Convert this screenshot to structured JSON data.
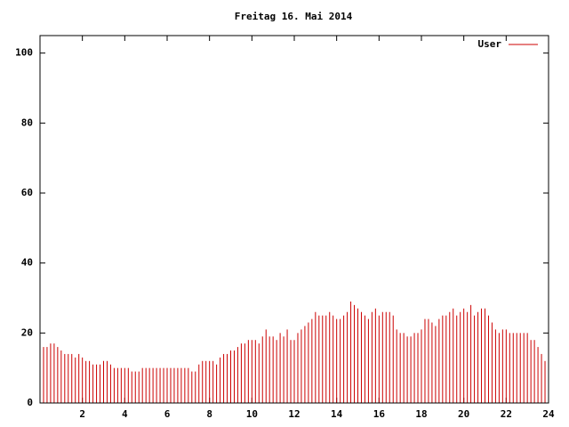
{
  "chart_data": {
    "type": "impulse",
    "title": "Freitag 16. Mai 2014",
    "series": [
      {
        "name": "User",
        "color": "#cc0000",
        "values": [
          15,
          16,
          16,
          17,
          17,
          16,
          15,
          14,
          14,
          14,
          13,
          14,
          13,
          12,
          12,
          11,
          11,
          11,
          12,
          12,
          11,
          10,
          10,
          10,
          10,
          10,
          9,
          9,
          9,
          10,
          10,
          10,
          10,
          10,
          10,
          10,
          10,
          10,
          10,
          10,
          10,
          10,
          10,
          9,
          9,
          11,
          12,
          12,
          12,
          12,
          11,
          13,
          14,
          14,
          15,
          15,
          16,
          17,
          17,
          18,
          18,
          18,
          17,
          19,
          21,
          19,
          19,
          18,
          20,
          19,
          21,
          18,
          18,
          20,
          21,
          22,
          23,
          24,
          26,
          25,
          25,
          25,
          26,
          25,
          24,
          24,
          25,
          26,
          29,
          28,
          27,
          26,
          25,
          24,
          26,
          27,
          25,
          26,
          26,
          26,
          25,
          21,
          20,
          20,
          19,
          19,
          20,
          20,
          21,
          24,
          24,
          23,
          22,
          24,
          25,
          25,
          26,
          27,
          25,
          26,
          27,
          26,
          28,
          25,
          26,
          27,
          27,
          25,
          23,
          21,
          20,
          21,
          21,
          20,
          20,
          20,
          20,
          20,
          20,
          18,
          18,
          16,
          14,
          12
        ]
      }
    ],
    "x": [
      0,
      0.167,
      0.333,
      0.5,
      0.667,
      0.833,
      1,
      1.167,
      1.333,
      1.5,
      1.667,
      1.833,
      2,
      2.167,
      2.333,
      2.5,
      2.667,
      2.833,
      3,
      3.167,
      3.333,
      3.5,
      3.667,
      3.833,
      4,
      4.167,
      4.333,
      4.5,
      4.667,
      4.833,
      5,
      5.167,
      5.333,
      5.5,
      5.667,
      5.833,
      6,
      6.167,
      6.333,
      6.5,
      6.667,
      6.833,
      7,
      7.167,
      7.333,
      7.5,
      7.667,
      7.833,
      8,
      8.167,
      8.333,
      8.5,
      8.667,
      8.833,
      9,
      9.167,
      9.333,
      9.5,
      9.667,
      9.833,
      10,
      10.167,
      10.333,
      10.5,
      10.667,
      10.833,
      11,
      11.167,
      11.333,
      11.5,
      11.667,
      11.833,
      12,
      12.167,
      12.333,
      12.5,
      12.667,
      12.833,
      13,
      13.167,
      13.333,
      13.5,
      13.667,
      13.833,
      14,
      14.167,
      14.333,
      14.5,
      14.667,
      14.833,
      15,
      15.167,
      15.333,
      15.5,
      15.667,
      15.833,
      16,
      16.167,
      16.333,
      16.5,
      16.667,
      16.833,
      17,
      17.167,
      17.333,
      17.5,
      17.667,
      17.833,
      18,
      18.167,
      18.333,
      18.5,
      18.667,
      18.833,
      19,
      19.167,
      19.333,
      19.5,
      19.667,
      19.833,
      20,
      20.167,
      20.333,
      20.5,
      20.667,
      20.833,
      21,
      21.167,
      21.333,
      21.5,
      21.667,
      21.833,
      22,
      22.167,
      22.333,
      22.5,
      22.667,
      22.833,
      23,
      23.167,
      23.333,
      23.5,
      23.667,
      23.833
    ],
    "xlim": [
      0,
      24
    ],
    "xticks": [
      2,
      4,
      6,
      8,
      10,
      12,
      14,
      16,
      18,
      20,
      22,
      24
    ],
    "ylim": [
      0,
      105
    ],
    "yticks": [
      0,
      20,
      40,
      60,
      80,
      100
    ],
    "legend": "top-right"
  }
}
